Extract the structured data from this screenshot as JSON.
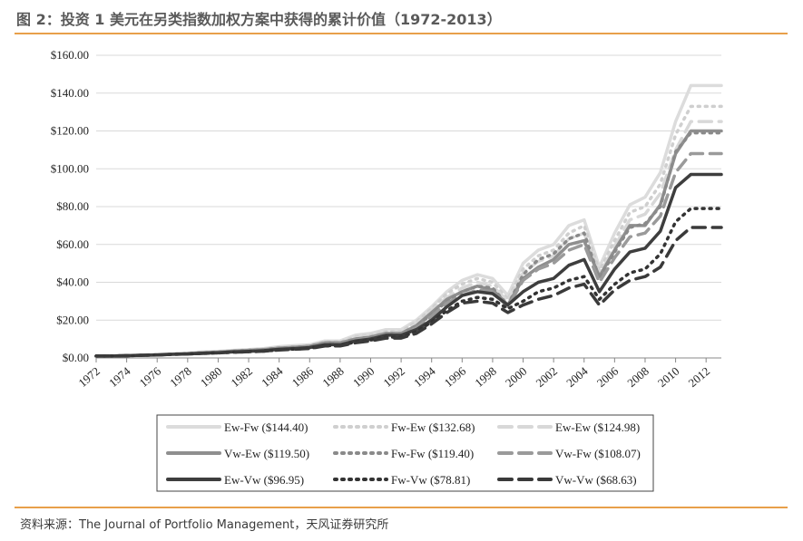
{
  "figure": {
    "title": "图 2：投资 1 美元在另类指数加权方案中获得的累计价值（1972-2013）",
    "source": "资料来源：The Journal of Portfolio Management，天风证券研究所"
  },
  "chart_data": {
    "type": "line",
    "title": "",
    "xlabel": "",
    "ylabel": "",
    "ylim": [
      0,
      160
    ],
    "yticks": [
      "$0.00",
      "$20.00",
      "$40.00",
      "$60.00",
      "$80.00",
      "$100.00",
      "$120.00",
      "$140.00",
      "$160.00"
    ],
    "xticks": [
      "1972",
      "1974",
      "1976",
      "1978",
      "1980",
      "1982",
      "1984",
      "1986",
      "1988",
      "1990",
      "1992",
      "1994",
      "1996",
      "1998",
      "2000",
      "2002",
      "2004",
      "2006",
      "2008",
      "2010",
      "2012"
    ],
    "x": [
      1972,
      1973,
      1974,
      1975,
      1976,
      1977,
      1978,
      1979,
      1980,
      1981,
      1982,
      1983,
      1984,
      1985,
      1986,
      1987,
      1988,
      1989,
      1990,
      1991,
      1992,
      1993,
      1994,
      1995,
      1996,
      1997,
      1998,
      1999,
      2000,
      2001,
      2002,
      2003,
      2004,
      2005,
      2006,
      2007,
      2008,
      2009,
      2010,
      2011,
      2012,
      2013
    ],
    "series": [
      {
        "name": "Ew-Fw",
        "label": "Ew-Fw ($144.40)",
        "color": "#dcdcdc",
        "style": "solid",
        "values": [
          1,
          1,
          1.2,
          1.5,
          1.7,
          2,
          2.6,
          3.2,
          3.5,
          4,
          4.4,
          5,
          6,
          6.5,
          7,
          9,
          9,
          12,
          13,
          15,
          15,
          20,
          27,
          35,
          41,
          44,
          42,
          33,
          50,
          57,
          60,
          70,
          73,
          48,
          66,
          81,
          85,
          98,
          125,
          144,
          144,
          144
        ]
      },
      {
        "name": "Fw-Ew",
        "label": "Fw-Ew ($132.68)",
        "color": "#cfcfcf",
        "style": "dotted",
        "values": [
          1,
          1,
          1.2,
          1.5,
          1.7,
          2,
          2.5,
          3,
          3.3,
          3.8,
          4.2,
          4.8,
          5.6,
          6,
          6.6,
          8.5,
          8.5,
          11,
          12,
          14,
          14,
          19,
          26,
          34,
          39,
          42,
          40,
          31,
          47,
          54,
          57,
          66,
          70,
          46,
          62,
          77,
          80,
          92,
          118,
          133,
          133,
          133
        ]
      },
      {
        "name": "Ew-Ew",
        "label": "Ew-Ew ($124.98)",
        "color": "#d8d8d8",
        "style": "dashed",
        "values": [
          1,
          1,
          1.2,
          1.5,
          1.7,
          2,
          2.4,
          2.9,
          3.2,
          3.7,
          4.1,
          4.6,
          5.4,
          5.8,
          6.4,
          8.2,
          8.2,
          10.5,
          11.5,
          13.5,
          13.5,
          18,
          25,
          32,
          37,
          40,
          38,
          30,
          45,
          51,
          54,
          63,
          66,
          44,
          59,
          73,
          76,
          87,
          110,
          125,
          125,
          125
        ]
      },
      {
        "name": "Vw-Ew",
        "label": "Vw-Ew ($119.50)",
        "color": "#8f8f8f",
        "style": "solid",
        "values": [
          1,
          1,
          1.2,
          1.5,
          1.7,
          2,
          2.3,
          2.8,
          3.1,
          3.6,
          4,
          4.4,
          5.2,
          5.6,
          6.2,
          8,
          8,
          10,
          11,
          13,
          13,
          17,
          24,
          31,
          35,
          38,
          36,
          28,
          42,
          48,
          52,
          60,
          62,
          43,
          57,
          70,
          70,
          81,
          108,
          120,
          120,
          120
        ]
      },
      {
        "name": "Fw-Fw",
        "label": "Fw-Fw ($119.40)",
        "color": "#8a8a8a",
        "style": "dotted",
        "values": [
          1,
          1,
          1.2,
          1.5,
          1.7,
          2,
          2.3,
          2.8,
          3.1,
          3.6,
          4,
          4.4,
          5.2,
          5.6,
          6.2,
          8,
          8,
          10,
          11,
          13,
          13,
          17,
          23,
          30,
          35,
          38,
          37,
          28,
          44,
          52,
          55,
          63,
          66,
          42,
          56,
          69,
          71,
          80,
          109,
          119,
          119,
          119
        ]
      },
      {
        "name": "Vw-Fw",
        "label": "Vw-Fw ($108.07)",
        "color": "#9a9a9a",
        "style": "dashed",
        "values": [
          1,
          1,
          1.2,
          1.5,
          1.7,
          2,
          2.2,
          2.7,
          3,
          3.4,
          3.8,
          4.2,
          5,
          5.4,
          6,
          7.6,
          7.6,
          9.5,
          10.5,
          12.5,
          12.5,
          16,
          22,
          29,
          33,
          36,
          35,
          27,
          41,
          47,
          50,
          57,
          60,
          40,
          53,
          64,
          66,
          75,
          98,
          108,
          108,
          108
        ]
      },
      {
        "name": "Ew-Vw",
        "label": "Ew-Vw ($96.95)",
        "color": "#3e3e3e",
        "style": "solid",
        "values": [
          1,
          1,
          1.2,
          1.4,
          1.6,
          1.9,
          2.1,
          2.5,
          2.8,
          3.2,
          3.5,
          3.9,
          4.6,
          5,
          5.5,
          7,
          7,
          9,
          10,
          12,
          12,
          15,
          20,
          27,
          33,
          35,
          34,
          28,
          35,
          40,
          42,
          49,
          52,
          35,
          47,
          56,
          58,
          67,
          90,
          97,
          97,
          97
        ]
      },
      {
        "name": "Fw-Vw",
        "label": "Fw-Vw ($78.81)",
        "color": "#333333",
        "style": "dotted",
        "values": [
          1,
          1,
          1.2,
          1.4,
          1.6,
          1.9,
          2.1,
          2.4,
          2.7,
          3,
          3.3,
          3.6,
          4.3,
          4.7,
          5.1,
          6.5,
          6.5,
          8.5,
          9.5,
          11,
          11,
          14,
          19,
          25,
          30,
          32,
          31,
          26,
          30,
          35,
          37,
          41,
          43,
          31,
          39,
          45,
          47,
          55,
          72,
          79,
          79,
          79
        ]
      },
      {
        "name": "Vw-Vw",
        "label": "Vw-Vw ($68.63)",
        "color": "#3a3a3a",
        "style": "dashed",
        "values": [
          1,
          1,
          1.2,
          1.4,
          1.6,
          1.9,
          2.1,
          2.4,
          2.7,
          3,
          3.3,
          3.6,
          4.2,
          4.6,
          5,
          6.3,
          6.3,
          8,
          9,
          10.5,
          10.5,
          13,
          18,
          24,
          29,
          30,
          29,
          24,
          28,
          31,
          33,
          37,
          39,
          28,
          36,
          41,
          43,
          48,
          62,
          69,
          69,
          69
        ]
      }
    ]
  }
}
